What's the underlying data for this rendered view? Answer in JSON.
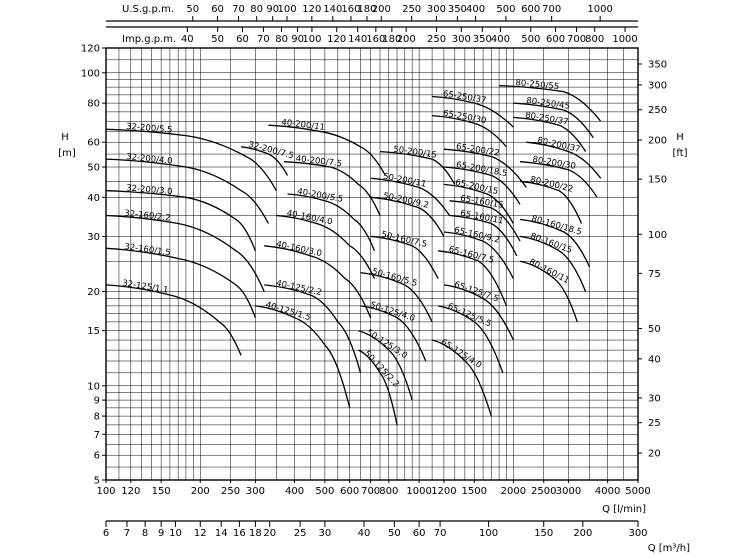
{
  "chart_data": {
    "type": "line",
    "title": "",
    "x_scale": "log",
    "y_scale": "log",
    "xlim": [
      100,
      5000
    ],
    "ylim": [
      5,
      120
    ],
    "axes": {
      "x_bottom": {
        "label": "Q [l/min]",
        "ticks": [
          100,
          120,
          150,
          200,
          250,
          300,
          400,
          500,
          600,
          700,
          800,
          1000,
          1200,
          1500,
          2000,
          2500,
          3000,
          4000,
          5000
        ]
      },
      "x_m3h": {
        "label": "Q [m³/h]",
        "ticks": [
          6,
          7,
          8,
          9,
          10,
          12,
          14,
          16,
          18,
          20,
          25,
          30,
          40,
          50,
          60,
          70,
          100,
          150,
          200,
          300
        ]
      },
      "x_usgpm": {
        "label": "U.S.g.p.m.",
        "ticks": [
          50,
          60,
          70,
          80,
          90,
          100,
          120,
          140,
          160,
          180,
          200,
          250,
          300,
          350,
          400,
          500,
          600,
          700,
          1000
        ]
      },
      "x_impgpm": {
        "label": "Imp.g.p.m.",
        "ticks": [
          40,
          50,
          60,
          70,
          80,
          90,
          100,
          120,
          140,
          160,
          180,
          200,
          250,
          300,
          350,
          400,
          500,
          600,
          700,
          800,
          1000
        ]
      },
      "y_left": {
        "label": "H [m]",
        "ticks": [
          5,
          6,
          7,
          8,
          9,
          10,
          15,
          20,
          30,
          40,
          50,
          60,
          80,
          100,
          120
        ]
      },
      "y_right": {
        "label": "H [ft]",
        "ticks": [
          20,
          25,
          30,
          40,
          50,
          75,
          100,
          150,
          200,
          250,
          300,
          350
        ]
      }
    },
    "series": [
      {
        "name": "32-125/1.1",
        "x": [
          100,
          160,
          230,
          270
        ],
        "y": [
          21,
          19.5,
          16,
          12.5
        ]
      },
      {
        "name": "32-160/1.5",
        "x": [
          100,
          170,
          260,
          300
        ],
        "y": [
          27.5,
          25.5,
          21,
          16.5
        ]
      },
      {
        "name": "32-160/2.2",
        "x": [
          100,
          170,
          260,
          320
        ],
        "y": [
          35,
          33,
          27,
          20
        ]
      },
      {
        "name": "32-200/3.0",
        "x": [
          100,
          180,
          260,
          300
        ],
        "y": [
          42,
          40,
          34,
          27
        ]
      },
      {
        "name": "32-200/4.0",
        "x": [
          100,
          180,
          270,
          330
        ],
        "y": [
          53,
          50,
          42,
          33
        ]
      },
      {
        "name": "32-200/5.5",
        "x": [
          100,
          180,
          280,
          350
        ],
        "y": [
          66,
          63,
          54,
          42
        ]
      },
      {
        "name": "32-200/7.5",
        "x": [
          270,
          330,
          380
        ],
        "y": [
          58,
          55,
          47
        ]
      },
      {
        "name": "40-125/1.5",
        "x": [
          300,
          400,
          500,
          600
        ],
        "y": [
          18,
          16.5,
          13.5,
          8.5
        ]
      },
      {
        "name": "40-125/2.2",
        "x": [
          320,
          450,
          550,
          650
        ],
        "y": [
          21,
          19.5,
          16,
          11
        ]
      },
      {
        "name": "40-160/3.0",
        "x": [
          320,
          450,
          580,
          700
        ],
        "y": [
          28,
          26,
          22,
          16.5
        ]
      },
      {
        "name": "40-160/4.0",
        "x": [
          350,
          470,
          600,
          720
        ],
        "y": [
          35,
          33,
          28,
          22
        ]
      },
      {
        "name": "40-200/5.5",
        "x": [
          380,
          500,
          620,
          720
        ],
        "y": [
          41,
          39,
          34,
          27
        ]
      },
      {
        "name": "40-200/7.5",
        "x": [
          370,
          520,
          640,
          750
        ],
        "y": [
          52,
          50,
          44,
          35
        ]
      },
      {
        "name": "40-200/11",
        "x": [
          330,
          480,
          650,
          780
        ],
        "y": [
          68,
          65,
          58,
          47
        ]
      },
      {
        "name": "50-125/2.2",
        "x": [
          640,
          750,
          850
        ],
        "y": [
          13,
          11,
          7.5
        ]
      },
      {
        "name": "50-125/3.0",
        "x": [
          640,
          800,
          950
        ],
        "y": [
          15,
          13,
          9
        ]
      },
      {
        "name": "50-125/4.0",
        "x": [
          650,
          850,
          1050
        ],
        "y": [
          18,
          16.5,
          12
        ]
      },
      {
        "name": "50-160/5.5",
        "x": [
          650,
          900,
          1100
        ],
        "y": [
          23,
          21,
          16
        ]
      },
      {
        "name": "50-160/7.5",
        "x": [
          700,
          950,
          1150
        ],
        "y": [
          30,
          28,
          22
        ]
      },
      {
        "name": "50-200/9.2",
        "x": [
          700,
          1000,
          1200
        ],
        "y": [
          40,
          37,
          30
        ]
      },
      {
        "name": "50-200/11",
        "x": [
          700,
          1000,
          1250
        ],
        "y": [
          46,
          43,
          35
        ]
      },
      {
        "name": "50-200/15",
        "x": [
          750,
          1100,
          1300
        ],
        "y": [
          56,
          53,
          44
        ]
      },
      {
        "name": "65-125/4.0",
        "x": [
          1100,
          1400,
          1700
        ],
        "y": [
          14,
          12,
          8
        ]
      },
      {
        "name": "65-125/5.5",
        "x": [
          1150,
          1500,
          1850
        ],
        "y": [
          18,
          16,
          11
        ]
      },
      {
        "name": "65-125/7.5",
        "x": [
          1200,
          1600,
          2000
        ],
        "y": [
          21,
          19,
          14
        ]
      },
      {
        "name": "65-160/7.5",
        "x": [
          1150,
          1550,
          1900
        ],
        "y": [
          27,
          25,
          18
        ]
      },
      {
        "name": "65-160/9.2",
        "x": [
          1200,
          1600,
          2000
        ],
        "y": [
          31,
          29,
          22
        ]
      },
      {
        "name": "65-160/11",
        "x": [
          1250,
          1700,
          2050
        ],
        "y": [
          35,
          33,
          26
        ]
      },
      {
        "name": "65-160/15",
        "x": [
          1250,
          1700,
          2100
        ],
        "y": [
          39,
          37,
          29
        ]
      },
      {
        "name": "65-200/15",
        "x": [
          1200,
          1650,
          2000
        ],
        "y": [
          44,
          41,
          33
        ]
      },
      {
        "name": "65-200/18.5",
        "x": [
          1200,
          1700,
          2100
        ],
        "y": [
          50,
          47,
          38
        ]
      },
      {
        "name": "65-200/22",
        "x": [
          1200,
          1700,
          2200
        ],
        "y": [
          57,
          54,
          43
        ]
      },
      {
        "name": "65-250/30",
        "x": [
          1100,
          1500,
          1900
        ],
        "y": [
          73,
          69,
          58
        ]
      },
      {
        "name": "65-250/37",
        "x": [
          1100,
          1500,
          2000
        ],
        "y": [
          84,
          80,
          67
        ]
      },
      {
        "name": "80-160/11",
        "x": [
          2100,
          2700,
          3200
        ],
        "y": [
          25,
          22,
          16
        ]
      },
      {
        "name": "80-160/15",
        "x": [
          2100,
          2800,
          3400
        ],
        "y": [
          30,
          27,
          20
        ]
      },
      {
        "name": "80-160/18.5",
        "x": [
          2100,
          2900,
          3500
        ],
        "y": [
          34,
          31,
          24
        ]
      },
      {
        "name": "80-200/22",
        "x": [
          2100,
          2800,
          3300
        ],
        "y": [
          45,
          42,
          33
        ]
      },
      {
        "name": "80-200/30",
        "x": [
          2100,
          3000,
          3700
        ],
        "y": [
          52,
          49,
          40
        ]
      },
      {
        "name": "80-200/37",
        "x": [
          2200,
          3000,
          3800
        ],
        "y": [
          60,
          56,
          46
        ]
      },
      {
        "name": "80-250/37",
        "x": [
          2000,
          2800,
          3400
        ],
        "y": [
          72,
          68,
          56
        ]
      },
      {
        "name": "80-250/45",
        "x": [
          2000,
          2900,
          3600
        ],
        "y": [
          80,
          76,
          62
        ]
      },
      {
        "name": "80-250/55",
        "x": [
          1800,
          2900,
          3800
        ],
        "y": [
          91,
          87,
          70
        ]
      }
    ]
  }
}
